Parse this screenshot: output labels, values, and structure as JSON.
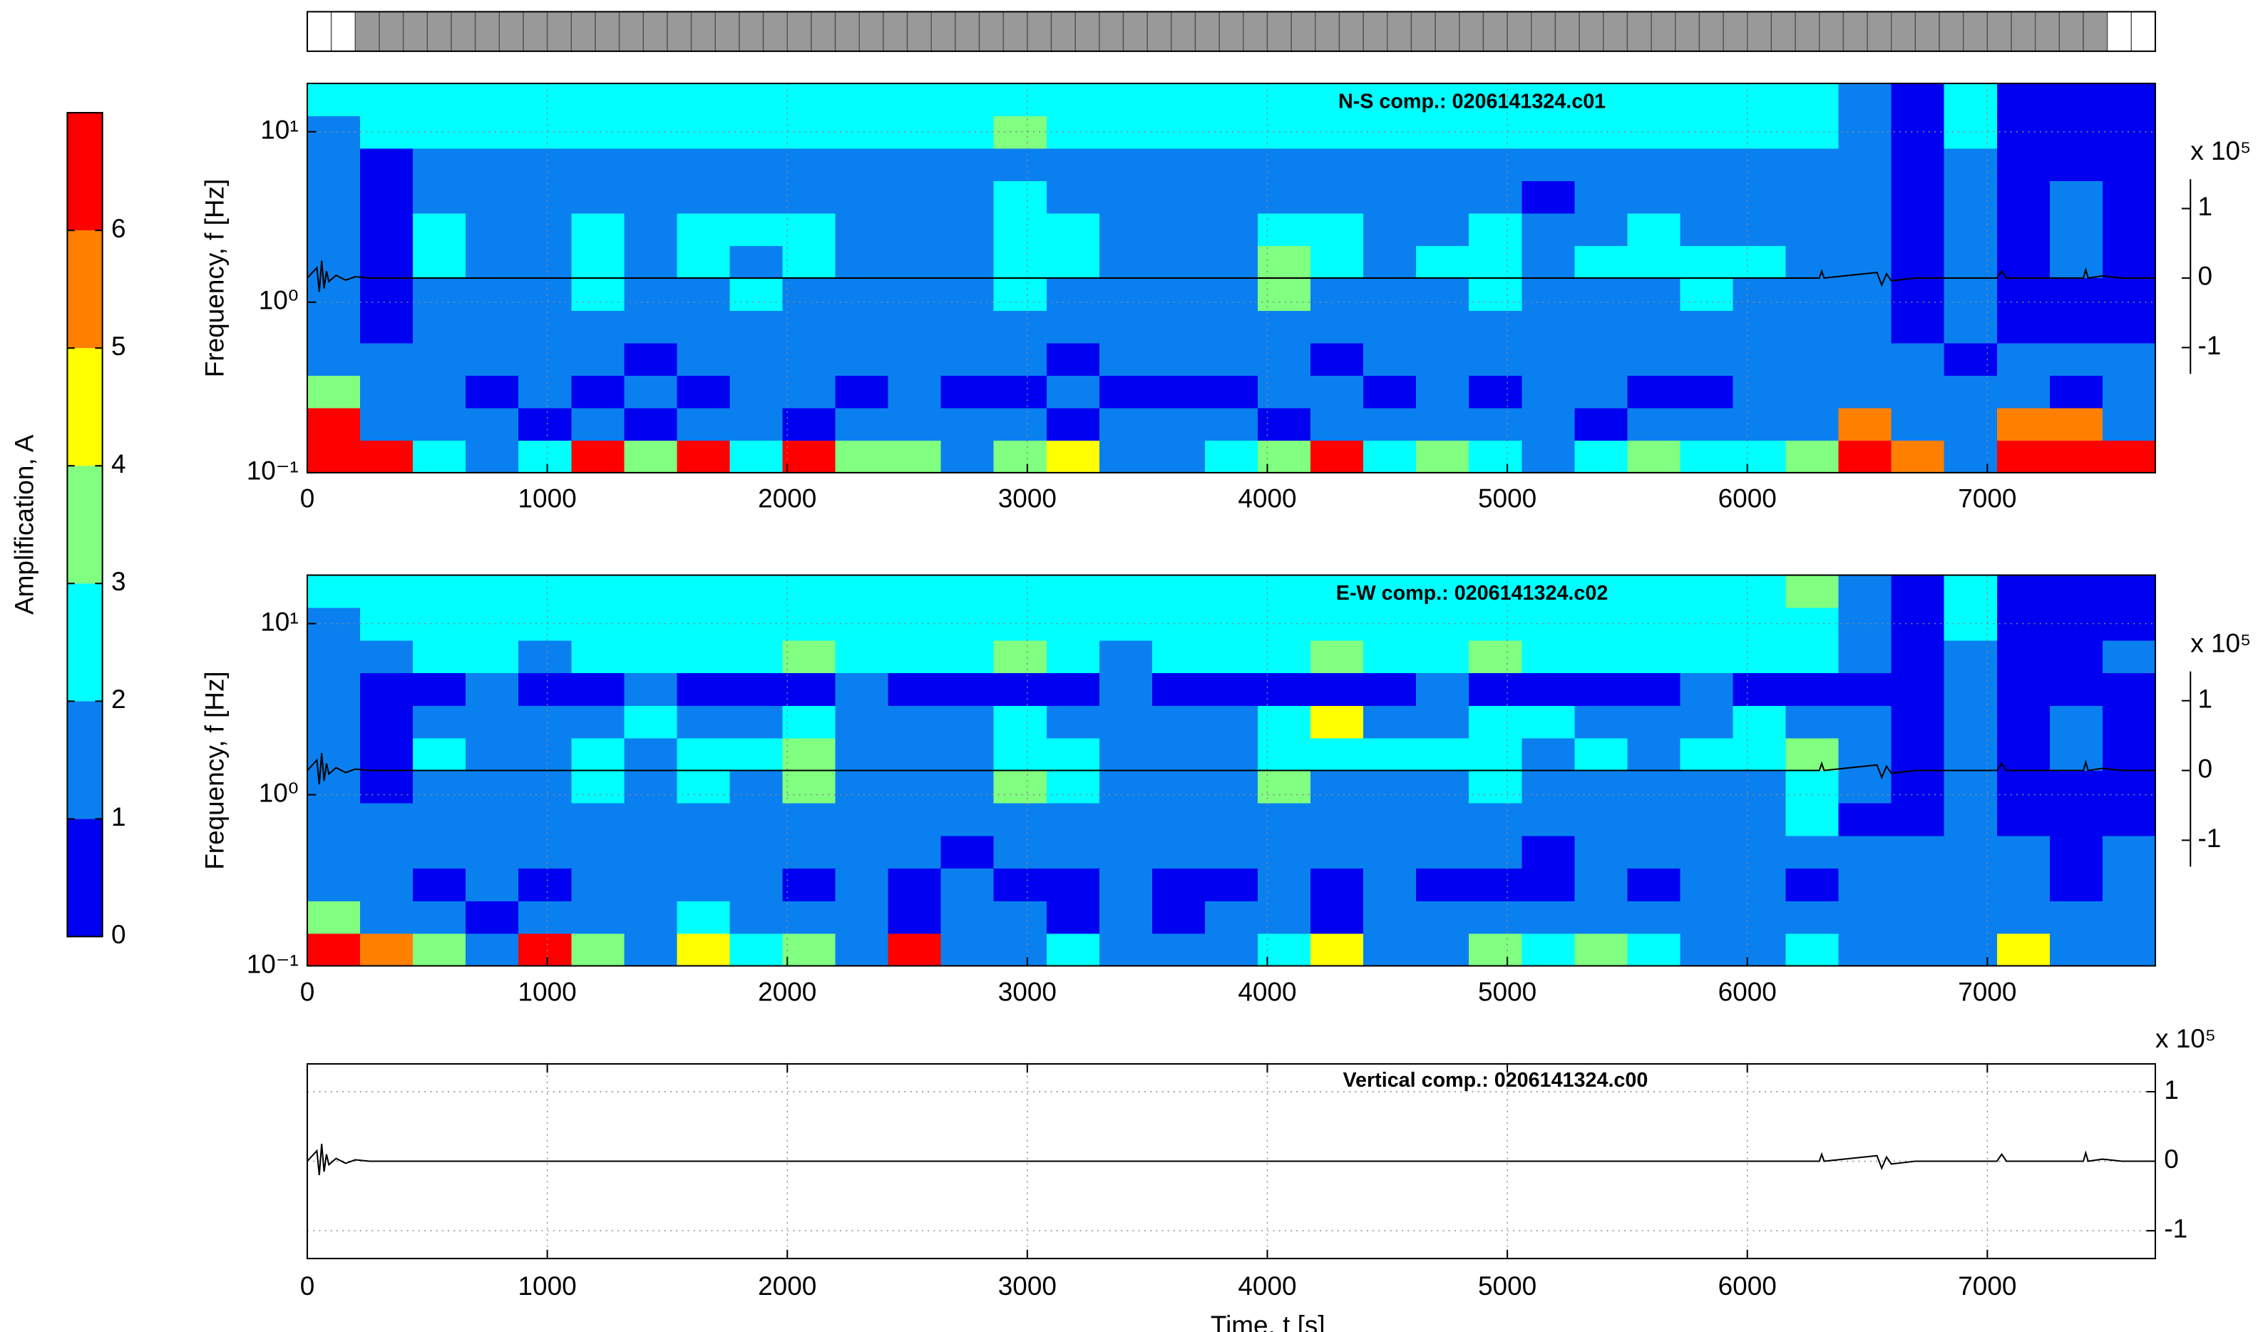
{
  "window_bar": {
    "windows": [
      0,
      0,
      1,
      1,
      1,
      1,
      1,
      1,
      1,
      1,
      1,
      1,
      1,
      1,
      1,
      1,
      1,
      1,
      1,
      1,
      1,
      1,
      1,
      1,
      1,
      1,
      1,
      1,
      1,
      1,
      1,
      1,
      1,
      1,
      1,
      1,
      1,
      1,
      1,
      1,
      1,
      1,
      1,
      1,
      1,
      1,
      1,
      1,
      1,
      1,
      1,
      1,
      1,
      1,
      1,
      1,
      1,
      1,
      1,
      1,
      1,
      1,
      1,
      1,
      1,
      1,
      1,
      1,
      1,
      1,
      1,
      1,
      1,
      1,
      1,
      0,
      0
    ],
    "colors": [
      "#ffffff",
      "#999999"
    ]
  },
  "chart_data": [
    {
      "type": "colorbar",
      "label": "Amplification, A",
      "levels": [
        0,
        1,
        2,
        3,
        4,
        5,
        6,
        7
      ],
      "ticks": [
        0,
        1,
        2,
        3,
        4,
        5,
        6
      ],
      "colors": [
        "#0000f0",
        "#0a80f0",
        "#00ffff",
        "#80ff80",
        "#ffff00",
        "#ff8000",
        "#ff0000"
      ]
    },
    {
      "type": "heatmap",
      "title": "N-S comp.: 0206141324.c01",
      "ylabel": "Frequency, f [Hz]",
      "log_y": true,
      "grid": true,
      "xlim": [
        0,
        7700
      ],
      "xticks": [
        0,
        1000,
        2000,
        3000,
        4000,
        5000,
        6000,
        7000
      ],
      "ylim": [
        0.1,
        19.2
      ],
      "yticks": [
        {
          "value": 0.1,
          "label": "10⁻¹"
        },
        {
          "value": 1,
          "label": "10⁰"
        },
        {
          "value": 10,
          "label": "10¹"
        }
      ],
      "xbins": [
        0,
        220,
        440,
        660,
        880,
        1100,
        1320,
        1540,
        1760,
        1980,
        2200,
        2420,
        2640,
        2860,
        3080,
        3300,
        3520,
        3740,
        3960,
        4180,
        4400,
        4620,
        4840,
        5060,
        5280,
        5500,
        5720,
        5940,
        6160,
        6380,
        6600,
        6820,
        7040,
        7260,
        7480,
        7700
      ],
      "ybins": [
        0.1,
        0.155,
        0.24,
        0.372,
        0.577,
        0.895,
        1.39,
        2.15,
        3.33,
        5.17,
        8.01,
        12.4,
        19.2
      ],
      "values": [
        [
          6,
          6,
          2,
          1,
          2,
          6,
          3,
          6,
          2,
          6,
          3,
          3,
          1,
          3,
          4,
          1,
          1,
          2,
          3,
          6,
          2,
          3,
          2,
          1,
          2,
          3,
          2,
          2,
          3,
          6,
          5,
          1,
          6,
          6,
          6
        ],
        [
          6,
          1,
          1,
          1,
          0,
          1,
          0,
          1,
          1,
          0,
          1,
          1,
          1,
          1,
          0,
          1,
          1,
          1,
          0,
          1,
          1,
          1,
          1,
          1,
          0,
          1,
          1,
          1,
          1,
          5,
          1,
          1,
          5,
          5,
          1
        ],
        [
          3,
          1,
          1,
          0,
          1,
          0,
          1,
          0,
          1,
          1,
          0,
          1,
          0,
          0,
          1,
          0,
          0,
          0,
          1,
          1,
          0,
          1,
          0,
          1,
          1,
          0,
          0,
          1,
          1,
          1,
          1,
          1,
          1,
          0,
          1
        ],
        [
          1,
          1,
          1,
          1,
          1,
          1,
          0,
          1,
          1,
          1,
          1,
          1,
          1,
          1,
          0,
          1,
          1,
          1,
          1,
          0,
          1,
          1,
          1,
          1,
          1,
          1,
          1,
          1,
          1,
          1,
          1,
          0,
          1,
          1,
          1
        ],
        [
          1,
          0,
          1,
          1,
          1,
          1,
          1,
          1,
          1,
          1,
          1,
          1,
          1,
          1,
          1,
          1,
          1,
          1,
          1,
          1,
          1,
          1,
          1,
          1,
          1,
          1,
          1,
          1,
          1,
          1,
          0,
          1,
          0,
          0,
          0
        ],
        [
          1,
          0,
          1,
          1,
          1,
          2,
          1,
          1,
          2,
          1,
          1,
          1,
          1,
          2,
          1,
          1,
          1,
          1,
          3,
          1,
          1,
          1,
          2,
          1,
          1,
          1,
          2,
          1,
          1,
          1,
          0,
          1,
          0,
          0,
          0
        ],
        [
          1,
          0,
          2,
          1,
          1,
          2,
          1,
          2,
          1,
          2,
          1,
          1,
          1,
          2,
          2,
          1,
          1,
          1,
          3,
          2,
          1,
          2,
          2,
          1,
          2,
          2,
          2,
          2,
          1,
          1,
          0,
          1,
          0,
          1,
          0
        ],
        [
          1,
          0,
          2,
          1,
          1,
          2,
          1,
          2,
          2,
          2,
          1,
          1,
          1,
          2,
          2,
          1,
          1,
          1,
          2,
          2,
          1,
          1,
          2,
          1,
          1,
          2,
          1,
          1,
          1,
          1,
          0,
          1,
          0,
          1,
          0
        ],
        [
          1,
          0,
          1,
          1,
          1,
          1,
          1,
          1,
          1,
          1,
          1,
          1,
          1,
          2,
          1,
          1,
          1,
          1,
          1,
          1,
          1,
          1,
          1,
          0,
          1,
          1,
          1,
          1,
          1,
          1,
          0,
          1,
          0,
          1,
          0
        ],
        [
          1,
          0,
          1,
          1,
          1,
          1,
          1,
          1,
          1,
          1,
          1,
          1,
          1,
          1,
          1,
          1,
          1,
          1,
          1,
          1,
          1,
          1,
          1,
          1,
          1,
          1,
          1,
          1,
          1,
          1,
          0,
          1,
          0,
          0,
          0
        ],
        [
          1,
          2,
          2,
          2,
          2,
          2,
          2,
          2,
          2,
          2,
          2,
          2,
          2,
          3,
          2,
          2,
          2,
          2,
          2,
          2,
          2,
          2,
          2,
          2,
          2,
          2,
          2,
          2,
          2,
          1,
          0,
          2,
          0,
          0,
          0
        ],
        [
          2,
          2,
          2,
          2,
          2,
          2,
          2,
          2,
          2,
          2,
          2,
          2,
          2,
          2,
          2,
          2,
          2,
          2,
          2,
          2,
          2,
          2,
          2,
          2,
          2,
          2,
          2,
          2,
          2,
          1,
          0,
          2,
          0,
          0,
          0
        ]
      ],
      "trace": {
        "x": [
          0,
          40,
          50,
          60,
          70,
          80,
          90,
          120,
          160,
          200,
          260,
          6300,
          6310,
          6320,
          6540,
          6560,
          6580,
          6600,
          6700,
          7040,
          7060,
          7080,
          7400,
          7410,
          7420,
          7480,
          7560,
          7700
        ],
        "values": [
          0,
          0.15,
          -0.2,
          0.25,
          -0.15,
          0.1,
          -0.05,
          0.04,
          -0.03,
          0.02,
          0,
          0,
          0.1,
          0,
          0.08,
          -0.1,
          0.06,
          -0.04,
          0,
          0,
          0.1,
          0,
          0,
          0.12,
          0,
          0.03,
          0,
          0
        ],
        "color": "#000000"
      },
      "y2lim": [
        -2.8,
        2.8
      ],
      "y2ticks": [
        -1,
        0,
        1
      ],
      "y2label": "x 10⁵"
    },
    {
      "type": "heatmap",
      "title": "E-W comp.: 0206141324.c02",
      "ylabel": "Frequency, f [Hz]",
      "log_y": true,
      "grid": true,
      "xlim": [
        0,
        7700
      ],
      "xticks": [
        0,
        1000,
        2000,
        3000,
        4000,
        5000,
        6000,
        7000
      ],
      "ylim": [
        0.1,
        19.2
      ],
      "yticks": [
        {
          "value": 0.1,
          "label": "10⁻¹"
        },
        {
          "value": 1,
          "label": "10⁰"
        },
        {
          "value": 10,
          "label": "10¹"
        }
      ],
      "xbins": [
        0,
        220,
        440,
        660,
        880,
        1100,
        1320,
        1540,
        1760,
        1980,
        2200,
        2420,
        2640,
        2860,
        3080,
        3300,
        3520,
        3740,
        3960,
        4180,
        4400,
        4620,
        4840,
        5060,
        5280,
        5500,
        5720,
        5940,
        6160,
        6380,
        6600,
        6820,
        7040,
        7260,
        7480,
        7700
      ],
      "ybins": [
        0.1,
        0.155,
        0.24,
        0.372,
        0.577,
        0.895,
        1.39,
        2.15,
        3.33,
        5.17,
        8.01,
        12.4,
        19.2
      ],
      "values": [
        [
          6,
          5,
          3,
          1,
          6,
          3,
          1,
          4,
          2,
          3,
          1,
          6,
          1,
          1,
          2,
          1,
          1,
          1,
          2,
          4,
          1,
          1,
          3,
          2,
          3,
          2,
          1,
          1,
          2,
          1,
          1,
          1,
          4,
          1,
          1
        ],
        [
          3,
          1,
          1,
          0,
          1,
          1,
          1,
          2,
          1,
          1,
          1,
          0,
          1,
          1,
          0,
          1,
          0,
          1,
          1,
          0,
          1,
          1,
          1,
          1,
          1,
          1,
          1,
          1,
          1,
          1,
          1,
          1,
          1,
          1,
          1
        ],
        [
          1,
          1,
          0,
          1,
          0,
          1,
          1,
          1,
          1,
          0,
          1,
          0,
          1,
          0,
          0,
          1,
          0,
          0,
          1,
          0,
          1,
          0,
          0,
          0,
          1,
          0,
          1,
          1,
          0,
          1,
          1,
          1,
          1,
          0,
          1
        ],
        [
          1,
          1,
          1,
          1,
          1,
          1,
          1,
          1,
          1,
          1,
          1,
          1,
          0,
          1,
          1,
          1,
          1,
          1,
          1,
          1,
          1,
          1,
          1,
          0,
          1,
          1,
          1,
          1,
          1,
          1,
          1,
          1,
          1,
          0,
          1
        ],
        [
          1,
          1,
          1,
          1,
          1,
          1,
          1,
          1,
          1,
          1,
          1,
          1,
          1,
          1,
          1,
          1,
          1,
          1,
          1,
          1,
          1,
          1,
          1,
          1,
          1,
          1,
          1,
          1,
          2,
          0,
          0,
          1,
          0,
          0,
          0
        ],
        [
          1,
          0,
          1,
          1,
          1,
          2,
          1,
          2,
          1,
          3,
          1,
          1,
          1,
          3,
          2,
          1,
          1,
          1,
          3,
          1,
          1,
          1,
          2,
          1,
          1,
          1,
          1,
          1,
          2,
          1,
          0,
          1,
          0,
          0,
          0
        ],
        [
          1,
          0,
          2,
          1,
          1,
          2,
          1,
          2,
          2,
          3,
          1,
          1,
          1,
          2,
          2,
          1,
          1,
          1,
          2,
          2,
          2,
          2,
          2,
          1,
          2,
          1,
          2,
          2,
          3,
          1,
          0,
          1,
          0,
          1,
          0
        ],
        [
          1,
          0,
          1,
          1,
          1,
          1,
          2,
          1,
          1,
          2,
          1,
          1,
          1,
          2,
          1,
          1,
          1,
          1,
          2,
          4,
          1,
          1,
          2,
          2,
          1,
          1,
          1,
          2,
          1,
          1,
          0,
          1,
          0,
          1,
          0
        ],
        [
          1,
          0,
          0,
          1,
          0,
          0,
          1,
          0,
          0,
          0,
          1,
          0,
          0,
          0,
          0,
          1,
          0,
          0,
          0,
          0,
          0,
          1,
          0,
          0,
          0,
          0,
          1,
          0,
          0,
          0,
          0,
          1,
          0,
          0,
          0
        ],
        [
          1,
          1,
          2,
          2,
          1,
          2,
          2,
          2,
          2,
          3,
          2,
          2,
          2,
          3,
          2,
          1,
          2,
          2,
          2,
          3,
          2,
          2,
          3,
          2,
          2,
          2,
          2,
          2,
          2,
          1,
          0,
          1,
          0,
          0,
          1
        ],
        [
          1,
          2,
          2,
          2,
          2,
          2,
          2,
          2,
          2,
          2,
          2,
          2,
          2,
          2,
          2,
          2,
          2,
          2,
          2,
          2,
          2,
          2,
          2,
          2,
          2,
          2,
          2,
          2,
          2,
          1,
          0,
          2,
          0,
          0,
          0
        ],
        [
          2,
          2,
          2,
          2,
          2,
          2,
          2,
          2,
          2,
          2,
          2,
          2,
          2,
          2,
          2,
          2,
          2,
          2,
          2,
          2,
          2,
          2,
          2,
          2,
          2,
          2,
          2,
          2,
          3,
          1,
          0,
          2,
          0,
          0,
          0
        ]
      ],
      "trace": {
        "x": [
          0,
          40,
          50,
          60,
          70,
          80,
          90,
          120,
          160,
          200,
          260,
          6300,
          6310,
          6320,
          6540,
          6560,
          6580,
          6600,
          6700,
          7040,
          7060,
          7080,
          7400,
          7410,
          7420,
          7480,
          7560,
          7700
        ],
        "values": [
          0,
          0.15,
          -0.2,
          0.25,
          -0.15,
          0.1,
          -0.05,
          0.04,
          -0.03,
          0.02,
          0,
          0,
          0.1,
          0,
          0.08,
          -0.1,
          0.06,
          -0.04,
          0,
          0,
          0.1,
          0,
          0,
          0.12,
          0,
          0.03,
          0,
          0
        ],
        "color": "#000000"
      },
      "y2lim": [
        -2.8,
        2.8
      ],
      "y2ticks": [
        -1,
        0,
        1
      ],
      "y2label": "x 10⁵"
    },
    {
      "type": "line",
      "title": "Vertical comp.: 0206141324.c00",
      "xlabel": "Time, t [s]",
      "grid": true,
      "xlim": [
        0,
        7700
      ],
      "xticks": [
        0,
        1000,
        2000,
        3000,
        4000,
        5000,
        6000,
        7000
      ],
      "ylim": [
        -1.4,
        1.4
      ],
      "yticks": [
        -1,
        0,
        1
      ],
      "ylabel": "x 10⁵",
      "x": [
        0,
        40,
        50,
        60,
        70,
        80,
        90,
        120,
        160,
        200,
        260,
        6300,
        6310,
        6320,
        6540,
        6560,
        6580,
        6600,
        6700,
        7040,
        7060,
        7080,
        7400,
        7410,
        7420,
        7480,
        7560,
        7700
      ],
      "values": [
        0,
        0.15,
        -0.2,
        0.25,
        -0.15,
        0.1,
        -0.05,
        0.04,
        -0.03,
        0.02,
        0,
        0,
        0.1,
        0,
        0.08,
        -0.1,
        0.06,
        -0.04,
        0,
        0,
        0.1,
        0,
        0,
        0.12,
        0,
        0.03,
        0,
        0
      ],
      "color": "#000000"
    }
  ]
}
